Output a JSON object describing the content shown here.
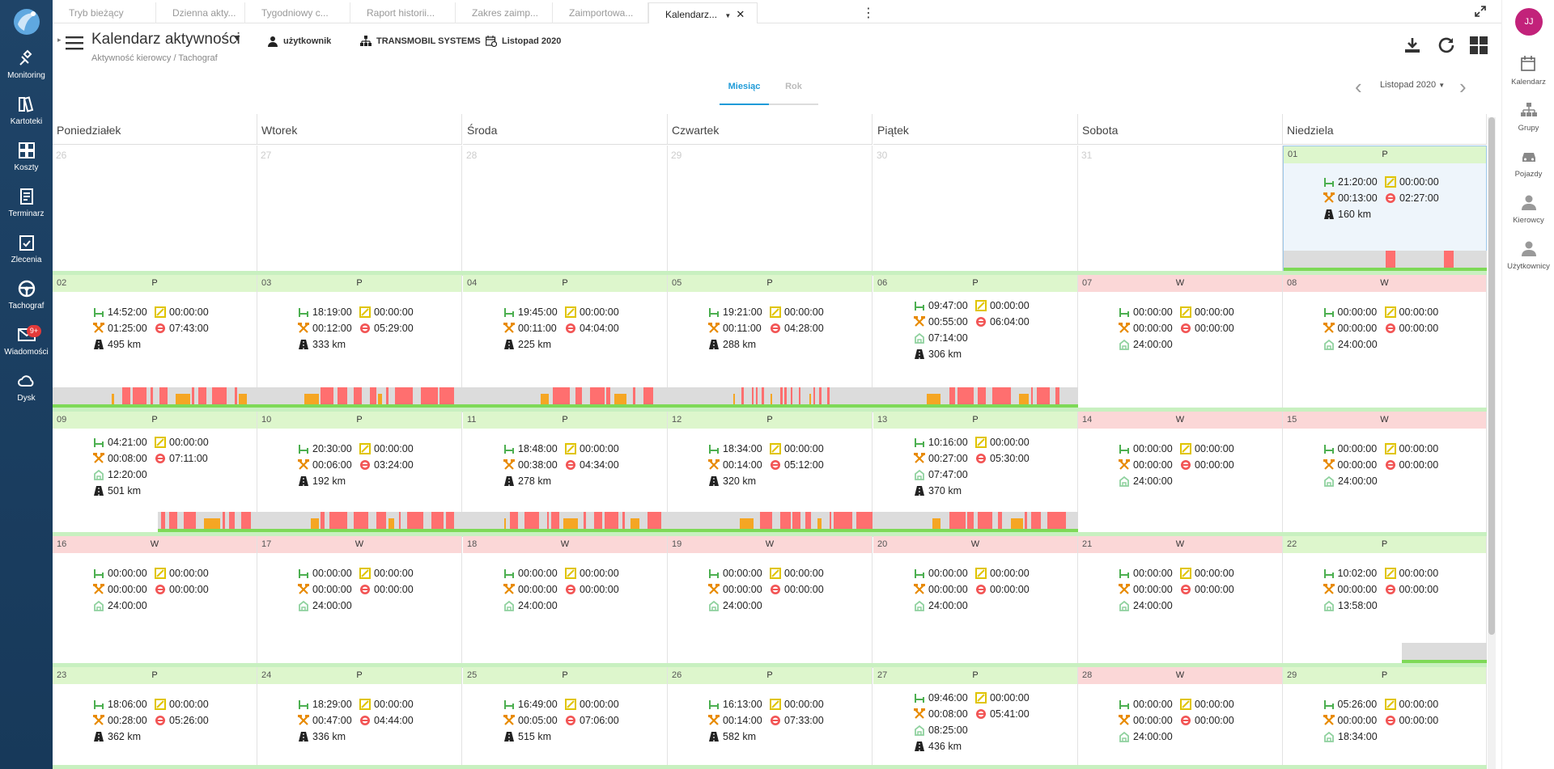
{
  "nav": {
    "items": [
      {
        "id": "monitoring",
        "label": "Monitoring",
        "icon": "satellite-icon"
      },
      {
        "id": "kartoteki",
        "label": "Kartoteki",
        "icon": "files-icon"
      },
      {
        "id": "koszty",
        "label": "Koszty",
        "icon": "grid-icon"
      },
      {
        "id": "terminarz",
        "label": "Terminarz",
        "icon": "clipboard-icon"
      },
      {
        "id": "zlecenia",
        "label": "Zlecenia",
        "icon": "checklist-icon"
      },
      {
        "id": "tachograf",
        "label": "Tachograf",
        "icon": "steering-wheel-icon"
      },
      {
        "id": "wiadomosci",
        "label": "Wiadomości",
        "icon": "envelope-icon",
        "badge": "9+"
      },
      {
        "id": "dysk",
        "label": "Dysk",
        "icon": "cloud-icon"
      }
    ]
  },
  "tabs": [
    {
      "label": "Tryb bieżący"
    },
    {
      "label": "Dzienna akty..."
    },
    {
      "label": "Tygodniowy c..."
    },
    {
      "label": "Raport historii..."
    },
    {
      "label": "Zakres zaimp..."
    },
    {
      "label": "Zaimportowa..."
    },
    {
      "label": "Kalendarz..."
    }
  ],
  "toolbar": {
    "title": "Kalendarz aktywności",
    "breadcrumb": "Aktywność kierowcy  /  Tachograf",
    "user": "użytkownik",
    "company": "TRANSMOBIL SYSTEMS",
    "period": "Listopad 2020"
  },
  "right_panel": {
    "avatar": "JJ",
    "items": [
      {
        "label": "Kalendarz",
        "icon": "calendar-icon"
      },
      {
        "label": "Grupy",
        "icon": "groups-icon"
      },
      {
        "label": "Pojazdy",
        "icon": "car-icon"
      },
      {
        "label": "Kierowcy",
        "icon": "driver-icon"
      },
      {
        "label": "Użytkownicy",
        "icon": "user-icon"
      }
    ]
  },
  "view_switch": {
    "month": "Miesiąc",
    "year": "Rok",
    "selected_month": "Listopad 2020"
  },
  "weekdays": [
    "Poniedziałek",
    "Wtorek",
    "Środa",
    "Czwartek",
    "Piątek",
    "Sobota",
    "Niedziela"
  ],
  "legend_colors": {
    "rest": "#7ed957",
    "work": "#ff7f7f",
    "drive_bar": "#ff6f6f",
    "other_work": "#f5a623",
    "bar_bg": "#dcdcdc"
  },
  "weeks": [
    [
      {
        "day": "26",
        "outside": true
      },
      {
        "day": "27",
        "outside": true
      },
      {
        "day": "28",
        "outside": true
      },
      {
        "day": "29",
        "outside": true
      },
      {
        "day": "30",
        "outside": true
      },
      {
        "day": "31",
        "outside": true
      },
      {
        "day": "01",
        "type": "P",
        "selected": true,
        "rest": "21:20:00",
        "avail": "00:00:00",
        "work": "00:13:00",
        "drive": "02:27:00",
        "km": "160 km"
      }
    ],
    [
      {
        "day": "02",
        "type": "P",
        "rest": "14:52:00",
        "avail": "00:00:00",
        "work": "01:25:00",
        "drive": "07:43:00",
        "km": "495 km"
      },
      {
        "day": "03",
        "type": "P",
        "rest": "18:19:00",
        "avail": "00:00:00",
        "work": "00:12:00",
        "drive": "05:29:00",
        "km": "333 km"
      },
      {
        "day": "04",
        "type": "P",
        "rest": "19:45:00",
        "avail": "00:00:00",
        "work": "00:11:00",
        "drive": "04:04:00",
        "km": "225 km"
      },
      {
        "day": "05",
        "type": "P",
        "rest": "19:21:00",
        "avail": "00:00:00",
        "work": "00:11:00",
        "drive": "04:28:00",
        "km": "288 km"
      },
      {
        "day": "06",
        "type": "P",
        "rest": "09:47:00",
        "avail": "00:00:00",
        "work": "00:55:00",
        "drive": "06:04:00",
        "house": "07:14:00",
        "km": "306 km"
      },
      {
        "day": "07",
        "type": "W",
        "rest": "00:00:00",
        "avail": "00:00:00",
        "work": "00:00:00",
        "drive": "00:00:00",
        "house": "24:00:00"
      },
      {
        "day": "08",
        "type": "W",
        "rest": "00:00:00",
        "avail": "00:00:00",
        "work": "00:00:00",
        "drive": "00:00:00",
        "house": "24:00:00"
      }
    ],
    [
      {
        "day": "09",
        "type": "P",
        "rest": "04:21:00",
        "avail": "00:00:00",
        "work": "00:08:00",
        "drive": "07:11:00",
        "house": "12:20:00",
        "km": "501 km"
      },
      {
        "day": "10",
        "type": "P",
        "rest": "20:30:00",
        "avail": "00:00:00",
        "work": "00:06:00",
        "drive": "03:24:00",
        "km": "192 km"
      },
      {
        "day": "11",
        "type": "P",
        "rest": "18:48:00",
        "avail": "00:00:00",
        "work": "00:38:00",
        "drive": "04:34:00",
        "km": "278 km"
      },
      {
        "day": "12",
        "type": "P",
        "rest": "18:34:00",
        "avail": "00:00:00",
        "work": "00:14:00",
        "drive": "05:12:00",
        "km": "320 km"
      },
      {
        "day": "13",
        "type": "P",
        "rest": "10:16:00",
        "avail": "00:00:00",
        "work": "00:27:00",
        "drive": "05:30:00",
        "house": "07:47:00",
        "km": "370 km"
      },
      {
        "day": "14",
        "type": "W",
        "rest": "00:00:00",
        "avail": "00:00:00",
        "work": "00:00:00",
        "drive": "00:00:00",
        "house": "24:00:00"
      },
      {
        "day": "15",
        "type": "W",
        "rest": "00:00:00",
        "avail": "00:00:00",
        "work": "00:00:00",
        "drive": "00:00:00",
        "house": "24:00:00"
      }
    ],
    [
      {
        "day": "16",
        "type": "W",
        "rest": "00:00:00",
        "avail": "00:00:00",
        "work": "00:00:00",
        "drive": "00:00:00",
        "house": "24:00:00"
      },
      {
        "day": "17",
        "type": "W",
        "rest": "00:00:00",
        "avail": "00:00:00",
        "work": "00:00:00",
        "drive": "00:00:00",
        "house": "24:00:00"
      },
      {
        "day": "18",
        "type": "W",
        "rest": "00:00:00",
        "avail": "00:00:00",
        "work": "00:00:00",
        "drive": "00:00:00",
        "house": "24:00:00"
      },
      {
        "day": "19",
        "type": "W",
        "rest": "00:00:00",
        "avail": "00:00:00",
        "work": "00:00:00",
        "drive": "00:00:00",
        "house": "24:00:00"
      },
      {
        "day": "20",
        "type": "W",
        "rest": "00:00:00",
        "avail": "00:00:00",
        "work": "00:00:00",
        "drive": "00:00:00",
        "house": "24:00:00"
      },
      {
        "day": "21",
        "type": "W",
        "rest": "00:00:00",
        "avail": "00:00:00",
        "work": "00:00:00",
        "drive": "00:00:00",
        "house": "24:00:00"
      },
      {
        "day": "22",
        "type": "P",
        "rest": "10:02:00",
        "avail": "00:00:00",
        "work": "00:00:00",
        "drive": "00:00:00",
        "house": "13:58:00"
      }
    ],
    [
      {
        "day": "23",
        "type": "P",
        "rest": "18:06:00",
        "avail": "00:00:00",
        "work": "00:28:00",
        "drive": "05:26:00",
        "km": "362 km"
      },
      {
        "day": "24",
        "type": "P",
        "rest": "18:29:00",
        "avail": "00:00:00",
        "work": "00:47:00",
        "drive": "04:44:00",
        "km": "336 km"
      },
      {
        "day": "25",
        "type": "P",
        "rest": "16:49:00",
        "avail": "00:00:00",
        "work": "00:05:00",
        "drive": "07:06:00",
        "km": "515 km"
      },
      {
        "day": "26",
        "type": "P",
        "rest": "16:13:00",
        "avail": "00:00:00",
        "work": "00:14:00",
        "drive": "07:33:00",
        "km": "582 km"
      },
      {
        "day": "27",
        "type": "P",
        "rest": "09:46:00",
        "avail": "00:00:00",
        "work": "00:08:00",
        "drive": "05:41:00",
        "house": "08:25:00",
        "km": "436 km"
      },
      {
        "day": "28",
        "type": "W",
        "rest": "00:00:00",
        "avail": "00:00:00",
        "work": "00:00:00",
        "drive": "00:00:00",
        "house": "24:00:00"
      },
      {
        "day": "29",
        "type": "P",
        "rest": "05:26:00",
        "avail": "00:00:00",
        "work": "00:00:00",
        "drive": "00:00:00",
        "house": "18:34:00"
      }
    ]
  ]
}
